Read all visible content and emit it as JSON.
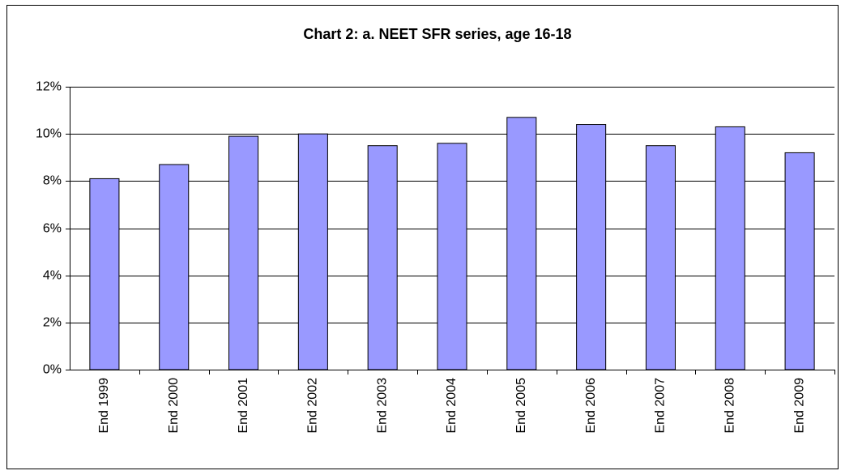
{
  "chart_data": {
    "type": "bar",
    "title": "Chart 2: a. NEET SFR series, age 16-18",
    "categories": [
      "End 1999",
      "End 2000",
      "End 2001",
      "End 2002",
      "End 2003",
      "End 2004",
      "End 2005",
      "End 2006",
      "End 2007",
      "End 2008",
      "End 2009"
    ],
    "values": [
      8.1,
      8.7,
      9.9,
      10.0,
      9.5,
      9.6,
      10.7,
      10.4,
      9.5,
      10.3,
      9.2
    ],
    "color": "#9999ff",
    "ylim": [
      0,
      12
    ],
    "yticks": [
      {
        "value": 0,
        "label": "0%"
      },
      {
        "value": 2,
        "label": "2%"
      },
      {
        "value": 4,
        "label": "4%"
      },
      {
        "value": 6,
        "label": "6%"
      },
      {
        "value": 8,
        "label": "8%"
      },
      {
        "value": 10,
        "label": "10%"
      },
      {
        "value": 12,
        "label": "12%"
      }
    ],
    "grid": true
  }
}
